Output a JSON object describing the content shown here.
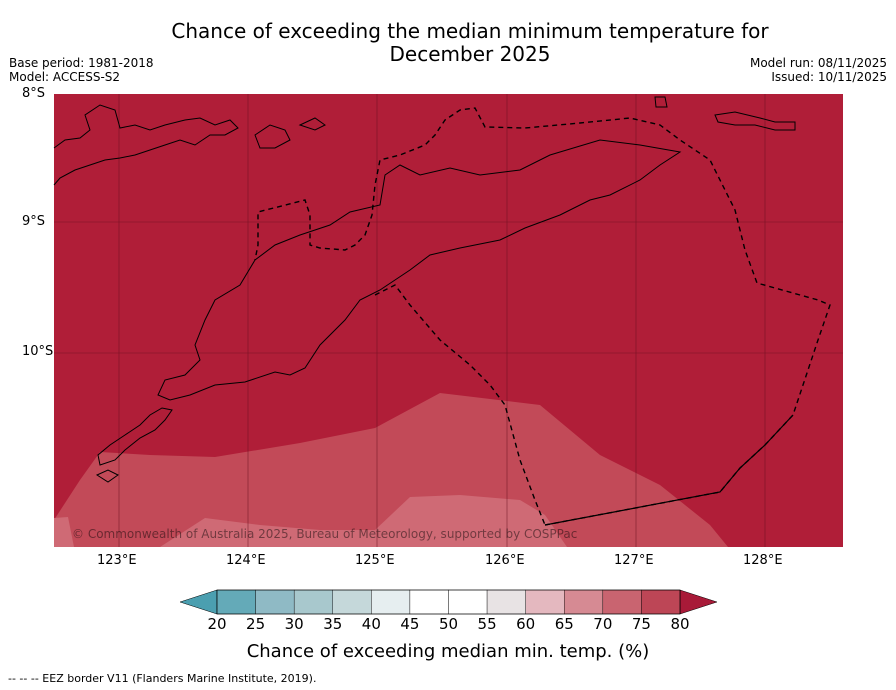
{
  "title_line1": "Chance of exceeding the median minimum temperature for",
  "title_line2": "December 2025",
  "base_period": "Base period: 1981-2018",
  "model": "Model: ACCESS-S2",
  "model_run": "Model run: 08/11/2025",
  "issued": "Issued: 10/11/2025",
  "map": {
    "lat_labels": [
      "8°S",
      "9°S",
      "10°S"
    ],
    "lon_labels": [
      "123°E",
      "124°E",
      "125°E",
      "126°E",
      "127°E",
      "128°E"
    ],
    "copyright": "© Commonwealth of Australia 2025, Bureau of Meteorology, supported by COSPPac",
    "colors": {
      "gt80": "#b01e38",
      "75_80": "#c24a58",
      "70_75": "#cf6a75"
    }
  },
  "colorbar": {
    "ticks": [
      "20",
      "25",
      "30",
      "35",
      "40",
      "45",
      "50",
      "55",
      "60",
      "65",
      "70",
      "75",
      "80"
    ],
    "colors": [
      "#64aab8",
      "#8fbac5",
      "#a8c8cd",
      "#c5d8da",
      "#e6eef0",
      "#ffffff",
      "#ffffff",
      "#e8e3e4",
      "#e4b8bf",
      "#d68a93",
      "#c96470",
      "#bd4656"
    ],
    "low_extend_color": "#4b9fb0",
    "high_extend_color": "#a81a38",
    "label": "Chance of exceeding median min. temp. (%)"
  },
  "footer": "--  --  -- EEZ border V11 (Flanders Marine Institute, 2019)."
}
